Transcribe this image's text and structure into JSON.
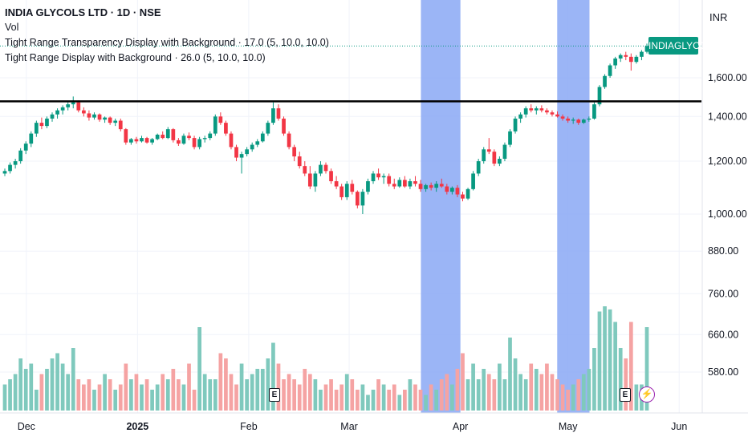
{
  "legend": {
    "title": "INDIA GLYCOLS LTD · 1D · NSE",
    "indicator_vol": "Vol",
    "indicator_transparency": "Tight Range Transparency Display with Background · 17.0 (5, 10.0, 10.0)",
    "indicator_display": "Tight Range Display with Background · 26.0 (5, 10.0, 10.0)"
  },
  "price_axis": {
    "currency": "INR",
    "ticks": [
      "1,600.00",
      "1,400.00",
      "1,200.00",
      "1,000.00",
      "880.00",
      "760.00",
      "660.00",
      "580.00"
    ]
  },
  "time_axis": {
    "ticks": [
      "Dec",
      "2025",
      "Feb",
      "Mar",
      "Apr",
      "May",
      "Jun"
    ]
  },
  "symbol_label": "INDIAGLYCO",
  "markers": {
    "earnings_label": "E",
    "flash_icon": "lightning-icon"
  },
  "colors": {
    "up": "#089981",
    "down": "#f23645",
    "up_volume": "#7fc9bd",
    "down_volume": "#f5a3a3",
    "highlight": "#8aa8f5",
    "resistance": "#000000",
    "last_price_line": "#089981"
  },
  "chart_data": {
    "type": "candlestick",
    "x_range": [
      "2024-11-25",
      "2025-05-23"
    ],
    "y_scale": "log",
    "resistance_level": 1475,
    "last_price": 1785,
    "highlight_ranges": [
      [
        "2025-03-21",
        "2025-04-01"
      ],
      [
        "2025-04-28",
        "2025-05-07"
      ]
    ],
    "earnings_dates": [
      "2025-02-10",
      "2025-05-12"
    ],
    "ohlc": [
      [
        1150,
        1170,
        1140,
        1160
      ],
      [
        1160,
        1195,
        1150,
        1185
      ],
      [
        1185,
        1210,
        1170,
        1200
      ],
      [
        1200,
        1255,
        1190,
        1245
      ],
      [
        1245,
        1285,
        1230,
        1275
      ],
      [
        1275,
        1330,
        1260,
        1320
      ],
      [
        1320,
        1380,
        1305,
        1370
      ],
      [
        1370,
        1395,
        1340,
        1355
      ],
      [
        1355,
        1400,
        1345,
        1390
      ],
      [
        1390,
        1420,
        1375,
        1410
      ],
      [
        1410,
        1440,
        1390,
        1430
      ],
      [
        1430,
        1455,
        1410,
        1445
      ],
      [
        1445,
        1470,
        1430,
        1460
      ],
      [
        1460,
        1500,
        1440,
        1470
      ],
      [
        1470,
        1480,
        1420,
        1430
      ],
      [
        1430,
        1445,
        1400,
        1415
      ],
      [
        1415,
        1430,
        1380,
        1395
      ],
      [
        1395,
        1420,
        1385,
        1410
      ],
      [
        1410,
        1415,
        1375,
        1385
      ],
      [
        1385,
        1400,
        1370,
        1395
      ],
      [
        1395,
        1400,
        1360,
        1370
      ],
      [
        1370,
        1390,
        1355,
        1380
      ],
      [
        1380,
        1390,
        1330,
        1340
      ],
      [
        1340,
        1345,
        1270,
        1280
      ],
      [
        1280,
        1300,
        1270,
        1295
      ],
      [
        1295,
        1305,
        1275,
        1285
      ],
      [
        1285,
        1310,
        1280,
        1300
      ],
      [
        1300,
        1305,
        1275,
        1280
      ],
      [
        1280,
        1300,
        1270,
        1295
      ],
      [
        1295,
        1320,
        1290,
        1315
      ],
      [
        1315,
        1330,
        1295,
        1300
      ],
      [
        1300,
        1350,
        1295,
        1340
      ],
      [
        1340,
        1345,
        1280,
        1290
      ],
      [
        1290,
        1300,
        1265,
        1275
      ],
      [
        1275,
        1320,
        1270,
        1310
      ],
      [
        1310,
        1325,
        1290,
        1300
      ],
      [
        1300,
        1310,
        1250,
        1260
      ],
      [
        1260,
        1305,
        1250,
        1295
      ],
      [
        1295,
        1310,
        1280,
        1300
      ],
      [
        1300,
        1330,
        1290,
        1320
      ],
      [
        1320,
        1410,
        1310,
        1400
      ],
      [
        1400,
        1420,
        1360,
        1370
      ],
      [
        1370,
        1380,
        1310,
        1320
      ],
      [
        1320,
        1330,
        1250,
        1260
      ],
      [
        1260,
        1270,
        1200,
        1215
      ],
      [
        1215,
        1240,
        1150,
        1230
      ],
      [
        1230,
        1260,
        1220,
        1250
      ],
      [
        1250,
        1280,
        1240,
        1270
      ],
      [
        1270,
        1295,
        1260,
        1285
      ],
      [
        1285,
        1330,
        1280,
        1320
      ],
      [
        1320,
        1380,
        1310,
        1370
      ],
      [
        1370,
        1470,
        1360,
        1440
      ],
      [
        1440,
        1460,
        1380,
        1390
      ],
      [
        1390,
        1400,
        1310,
        1320
      ],
      [
        1320,
        1330,
        1250,
        1260
      ],
      [
        1260,
        1270,
        1200,
        1220
      ],
      [
        1220,
        1240,
        1170,
        1180
      ],
      [
        1180,
        1200,
        1140,
        1150
      ],
      [
        1150,
        1180,
        1090,
        1100
      ],
      [
        1100,
        1160,
        1080,
        1150
      ],
      [
        1150,
        1200,
        1140,
        1185
      ],
      [
        1185,
        1195,
        1150,
        1160
      ],
      [
        1160,
        1170,
        1110,
        1120
      ],
      [
        1120,
        1140,
        1090,
        1100
      ],
      [
        1100,
        1110,
        1050,
        1060
      ],
      [
        1060,
        1120,
        1050,
        1110
      ],
      [
        1110,
        1125,
        1070,
        1080
      ],
      [
        1080,
        1085,
        1020,
        1030
      ],
      [
        1030,
        1090,
        1000,
        1080
      ],
      [
        1080,
        1130,
        1070,
        1120
      ],
      [
        1120,
        1160,
        1110,
        1150
      ],
      [
        1150,
        1170,
        1125,
        1135
      ],
      [
        1135,
        1150,
        1110,
        1140
      ],
      [
        1140,
        1150,
        1100,
        1110
      ],
      [
        1110,
        1130,
        1090,
        1100
      ],
      [
        1100,
        1135,
        1095,
        1125
      ],
      [
        1125,
        1140,
        1095,
        1100
      ],
      [
        1100,
        1130,
        1090,
        1120
      ],
      [
        1120,
        1140,
        1100,
        1110
      ],
      [
        1110,
        1125,
        1080,
        1090
      ],
      [
        1090,
        1110,
        1080,
        1105
      ],
      [
        1105,
        1115,
        1085,
        1095
      ],
      [
        1095,
        1120,
        1080,
        1110
      ],
      [
        1110,
        1130,
        1095,
        1100
      ],
      [
        1100,
        1110,
        1070,
        1080
      ],
      [
        1080,
        1100,
        1070,
        1095
      ],
      [
        1095,
        1105,
        1060,
        1070
      ],
      [
        1070,
        1080,
        1045,
        1055
      ],
      [
        1055,
        1095,
        1050,
        1090
      ],
      [
        1090,
        1160,
        1085,
        1150
      ],
      [
        1150,
        1210,
        1140,
        1200
      ],
      [
        1200,
        1260,
        1190,
        1250
      ],
      [
        1250,
        1300,
        1230,
        1240
      ],
      [
        1240,
        1250,
        1180,
        1190
      ],
      [
        1190,
        1220,
        1180,
        1210
      ],
      [
        1210,
        1280,
        1200,
        1270
      ],
      [
        1270,
        1340,
        1260,
        1330
      ],
      [
        1330,
        1400,
        1320,
        1390
      ],
      [
        1390,
        1420,
        1370,
        1410
      ],
      [
        1410,
        1450,
        1395,
        1440
      ],
      [
        1440,
        1460,
        1420,
        1430
      ],
      [
        1430,
        1450,
        1410,
        1440
      ],
      [
        1440,
        1455,
        1420,
        1430
      ],
      [
        1430,
        1440,
        1410,
        1420
      ],
      [
        1420,
        1430,
        1400,
        1410
      ],
      [
        1410,
        1425,
        1395,
        1400
      ],
      [
        1400,
        1410,
        1380,
        1390
      ],
      [
        1390,
        1400,
        1370,
        1380
      ],
      [
        1380,
        1395,
        1365,
        1385
      ],
      [
        1385,
        1390,
        1360,
        1370
      ],
      [
        1370,
        1390,
        1365,
        1385
      ],
      [
        1385,
        1400,
        1375,
        1390
      ],
      [
        1390,
        1470,
        1385,
        1460
      ],
      [
        1460,
        1560,
        1450,
        1550
      ],
      [
        1550,
        1620,
        1540,
        1610
      ],
      [
        1610,
        1680,
        1600,
        1670
      ],
      [
        1670,
        1720,
        1650,
        1710
      ],
      [
        1710,
        1740,
        1690,
        1730
      ],
      [
        1730,
        1750,
        1700,
        1720
      ],
      [
        1720,
        1740,
        1640,
        1690
      ],
      [
        1690,
        1730,
        1680,
        1720
      ],
      [
        1720,
        1760,
        1700,
        1750
      ],
      [
        1750,
        1800,
        1740,
        1785
      ]
    ],
    "volume_relative": [
      0.25,
      0.3,
      0.35,
      0.5,
      0.4,
      0.45,
      0.2,
      0.35,
      0.4,
      0.5,
      0.55,
      0.45,
      0.35,
      0.6,
      0.3,
      0.25,
      0.3,
      0.2,
      0.25,
      0.35,
      0.3,
      0.2,
      0.25,
      0.45,
      0.3,
      0.35,
      0.25,
      0.3,
      0.2,
      0.25,
      0.35,
      0.3,
      0.4,
      0.3,
      0.25,
      0.45,
      0.2,
      0.8,
      0.35,
      0.3,
      0.3,
      0.55,
      0.5,
      0.35,
      0.25,
      0.45,
      0.3,
      0.35,
      0.4,
      0.4,
      0.5,
      0.65,
      0.45,
      0.3,
      0.35,
      0.3,
      0.25,
      0.4,
      0.35,
      0.3,
      0.2,
      0.25,
      0.3,
      0.2,
      0.25,
      0.35,
      0.3,
      0.2,
      0.25,
      0.15,
      0.2,
      0.3,
      0.25,
      0.2,
      0.25,
      0.15,
      0.2,
      0.3,
      0.25,
      0.2,
      0.15,
      0.25,
      0.2,
      0.3,
      0.35,
      0.25,
      0.4,
      0.55,
      0.3,
      0.45,
      0.3,
      0.4,
      0.35,
      0.3,
      0.45,
      0.3,
      0.7,
      0.5,
      0.35,
      0.3,
      0.45,
      0.4,
      0.35,
      0.45,
      0.35,
      0.3,
      0.25,
      0.2,
      0.25,
      0.3,
      0.35,
      0.4,
      0.6,
      0.95,
      1.0,
      0.97,
      0.85,
      0.6,
      0.5,
      0.85,
      0.25,
      0.25,
      0.8
    ]
  }
}
